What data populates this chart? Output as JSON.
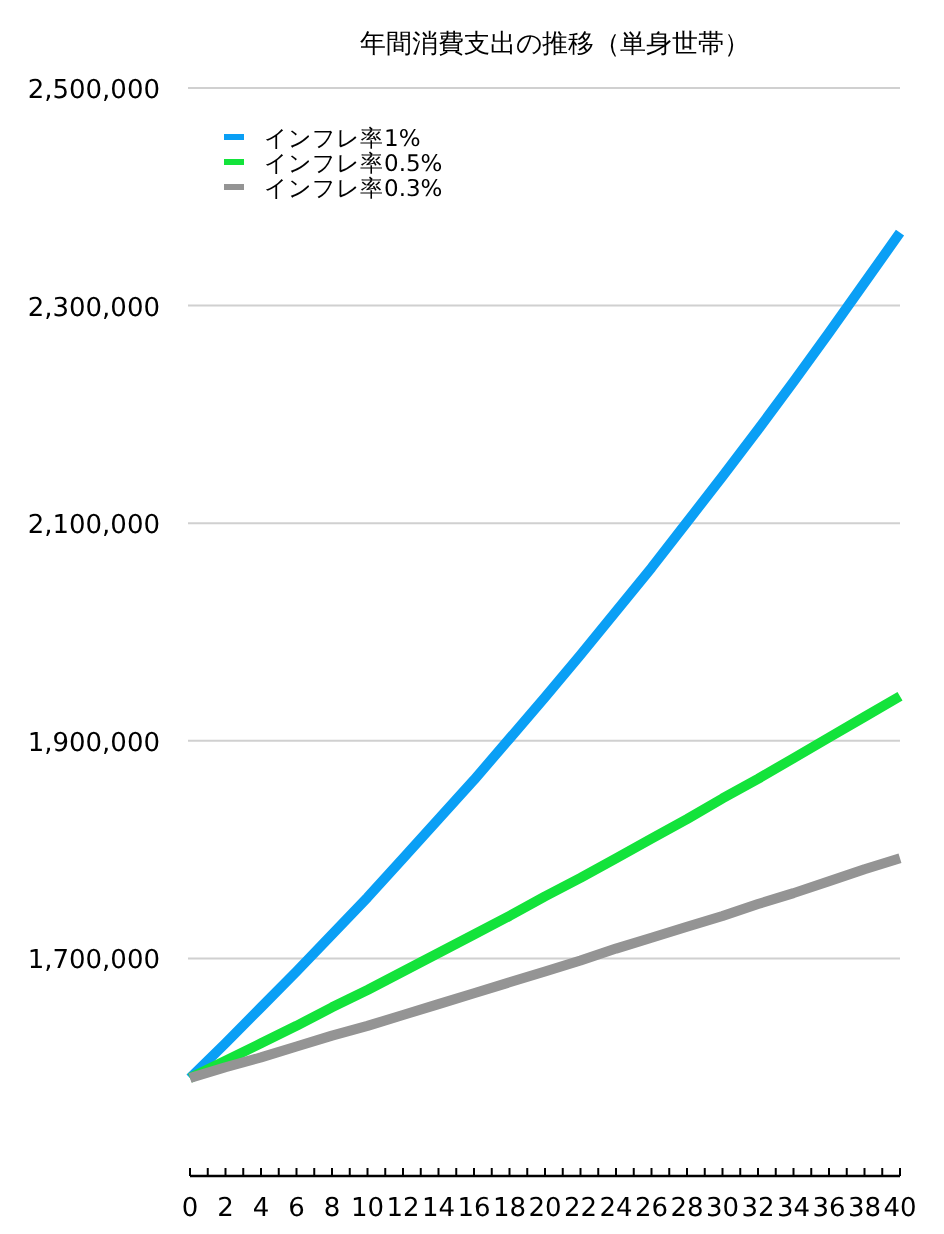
{
  "chart_data": {
    "type": "line",
    "title": "年間消費支出の推移（単身世帯）",
    "x": [
      0,
      2,
      4,
      6,
      8,
      10,
      12,
      14,
      16,
      18,
      20,
      22,
      24,
      26,
      28,
      30,
      32,
      34,
      36,
      38,
      40
    ],
    "series": [
      {
        "name": "インフレ率1%",
        "color": "#0a9ff5",
        "values": [
          1590000,
          1622000,
          1655000,
          1688000,
          1722000,
          1756000,
          1792000,
          1828000,
          1864000,
          1902000,
          1940000,
          1979000,
          2019000,
          2059000,
          2101000,
          2143000,
          2186000,
          2230000,
          2275000,
          2321000,
          2367000
        ]
      },
      {
        "name": "インフレ率0.5%",
        "color": "#13e33b",
        "values": [
          1590000,
          1606000,
          1622000,
          1638000,
          1655000,
          1671000,
          1688000,
          1705000,
          1722000,
          1739000,
          1757000,
          1774000,
          1792000,
          1810000,
          1828000,
          1847000,
          1865000,
          1884000,
          1903000,
          1922000,
          1941000
        ]
      },
      {
        "name": "インフレ率0.3%",
        "color": "#949494",
        "values": [
          1590000,
          1600000,
          1609000,
          1619000,
          1629000,
          1638000,
          1648000,
          1658000,
          1668000,
          1678000,
          1688000,
          1698000,
          1709000,
          1719000,
          1729000,
          1739000,
          1750000,
          1760000,
          1771000,
          1782000,
          1792000
        ]
      }
    ],
    "xlim": [
      0,
      40
    ],
    "xticks": [
      0,
      {
        "value": 1,
        "label": null
      },
      2,
      {
        "value": 3,
        "label": null
      },
      4,
      {
        "value": 5,
        "label": null
      },
      6,
      {
        "value": 7,
        "label": null
      },
      8,
      {
        "value": 9,
        "label": null
      },
      10,
      {
        "value": 11,
        "label": null
      },
      12,
      {
        "value": 13,
        "label": null
      },
      14,
      {
        "value": 15,
        "label": null
      },
      16,
      {
        "value": 17,
        "label": null
      },
      18,
      {
        "value": 19,
        "label": null
      },
      20,
      {
        "value": 21,
        "label": null
      },
      22,
      {
        "value": 23,
        "label": null
      },
      24,
      {
        "value": 25,
        "label": null
      },
      26,
      {
        "value": 27,
        "label": null
      },
      28,
      {
        "value": 29,
        "label": null
      },
      30,
      {
        "value": 31,
        "label": null
      },
      32,
      {
        "value": 33,
        "label": null
      },
      34,
      {
        "value": 35,
        "label": null
      },
      36,
      {
        "value": 37,
        "label": null
      },
      38,
      {
        "value": 39,
        "label": null
      },
      40
    ],
    "ylim": [
      1500000,
      2500000
    ],
    "yticks": [
      {
        "value": 1700000,
        "label": "1,700,000"
      },
      {
        "value": 1900000,
        "label": "1,900,000"
      },
      {
        "value": 2100000,
        "label": "2,100,000"
      },
      {
        "value": 2300000,
        "label": "2,300,000"
      },
      {
        "value": 2500000,
        "label": "2,500,000"
      }
    ],
    "grid": "y",
    "legend": "top left"
  }
}
